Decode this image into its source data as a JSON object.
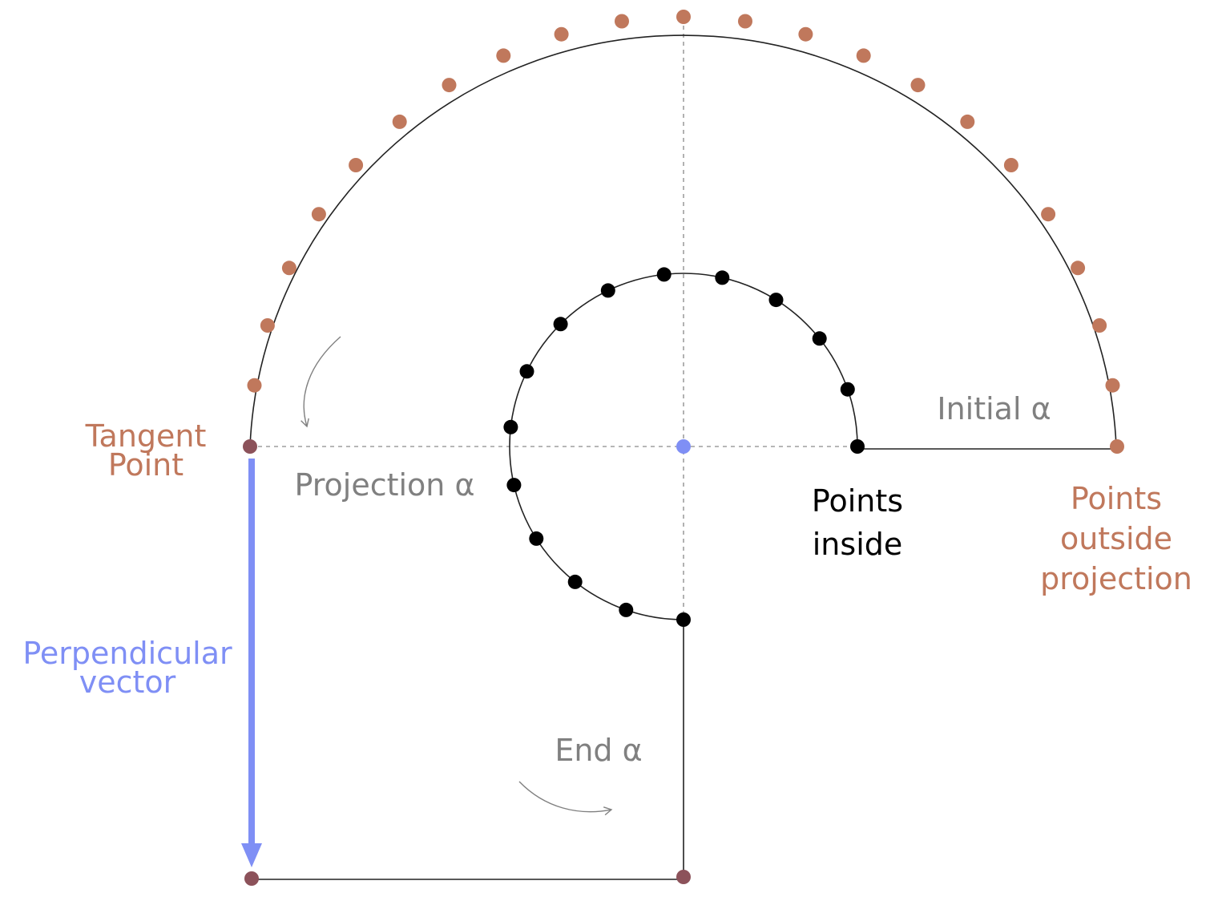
{
  "colors": {
    "outer_points": "#c0785c",
    "inner_points": "#000000",
    "center_point": "#7f8ff5",
    "tangent_point": "#8c525a",
    "perpendicular_vector": "#7f8ff5",
    "curve_line": "#222222",
    "guide_line": "#9e9e9e",
    "gray_label": "#808080",
    "orange_label": "#c0785c",
    "blue_label": "#7f8ff5",
    "black_label": "#000000"
  },
  "labels": {
    "tangent_point": [
      "Tangent",
      "Point"
    ],
    "projection_alpha": "Projection α",
    "initial_alpha": "Initial α",
    "points_inside": [
      "Points",
      "inside"
    ],
    "points_outside_projection": [
      "Points",
      "outside",
      "projection"
    ],
    "perpendicular_vector": [
      "Perpendicular",
      "vector"
    ],
    "end_alpha": "End α"
  },
  "diagram": {
    "outer_points_count": 23,
    "inner_points_count": 15
  }
}
